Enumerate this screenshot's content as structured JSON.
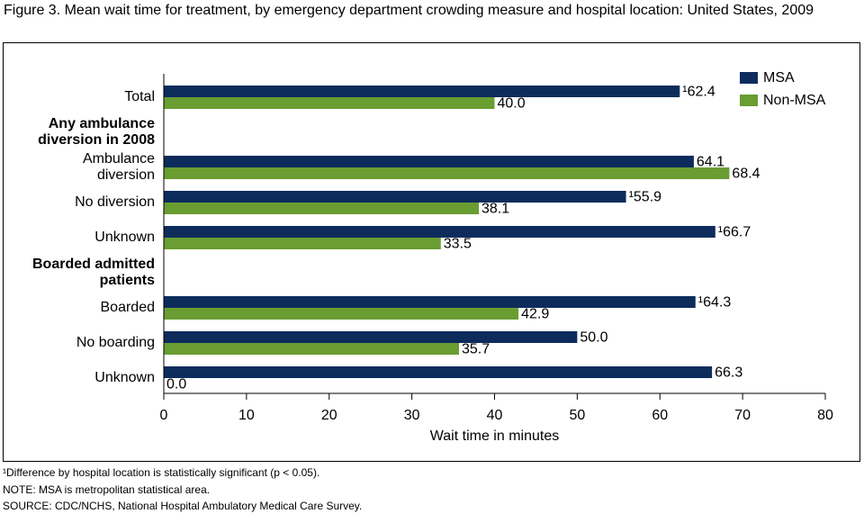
{
  "chart_data": {
    "type": "hbar",
    "title": "Figure 3. Mean wait time for treatment, by emergency department crowding measure and hospital location: United States, 2009",
    "categories": [
      "Total",
      "Any ambulance\ndiversion in 2008",
      "Ambulance\ndiversion",
      "No diversion",
      "Unknown",
      "Boarded admitted\npatients",
      "Boarded",
      "No boarding",
      "Unknown"
    ],
    "series": [
      {
        "name": "MSA",
        "color": "#0d2c5c",
        "values": [
          62.4,
          null,
          64.1,
          55.9,
          66.7,
          null,
          64.3,
          50.0,
          66.3
        ],
        "value_labels": [
          "¹62.4",
          null,
          "64.1",
          "¹55.9",
          "¹66.7",
          null,
          "¹64.3",
          "50.0",
          "66.3"
        ]
      },
      {
        "name": "Non-MSA",
        "color": "#6a9d32",
        "values": [
          40.0,
          null,
          68.4,
          38.1,
          33.5,
          null,
          42.9,
          35.7,
          0.0
        ],
        "value_labels": [
          "40.0",
          null,
          "68.4",
          "38.1",
          "33.5",
          null,
          "42.9",
          "35.7",
          "0.0"
        ]
      }
    ],
    "xlabel": "Wait time in minutes",
    "xlim": [
      0,
      80
    ],
    "xticks": [
      0,
      10,
      20,
      30,
      40,
      50,
      60,
      70,
      80
    ],
    "legend": "top-right",
    "notes": [
      "¹Difference by hospital location is statistically significant (p < 0.05).",
      "NOTE: MSA is metropolitan statistical area.",
      "SOURCE: CDC/NCHS, National Hospital Ambulatory Medical Care Survey."
    ]
  }
}
